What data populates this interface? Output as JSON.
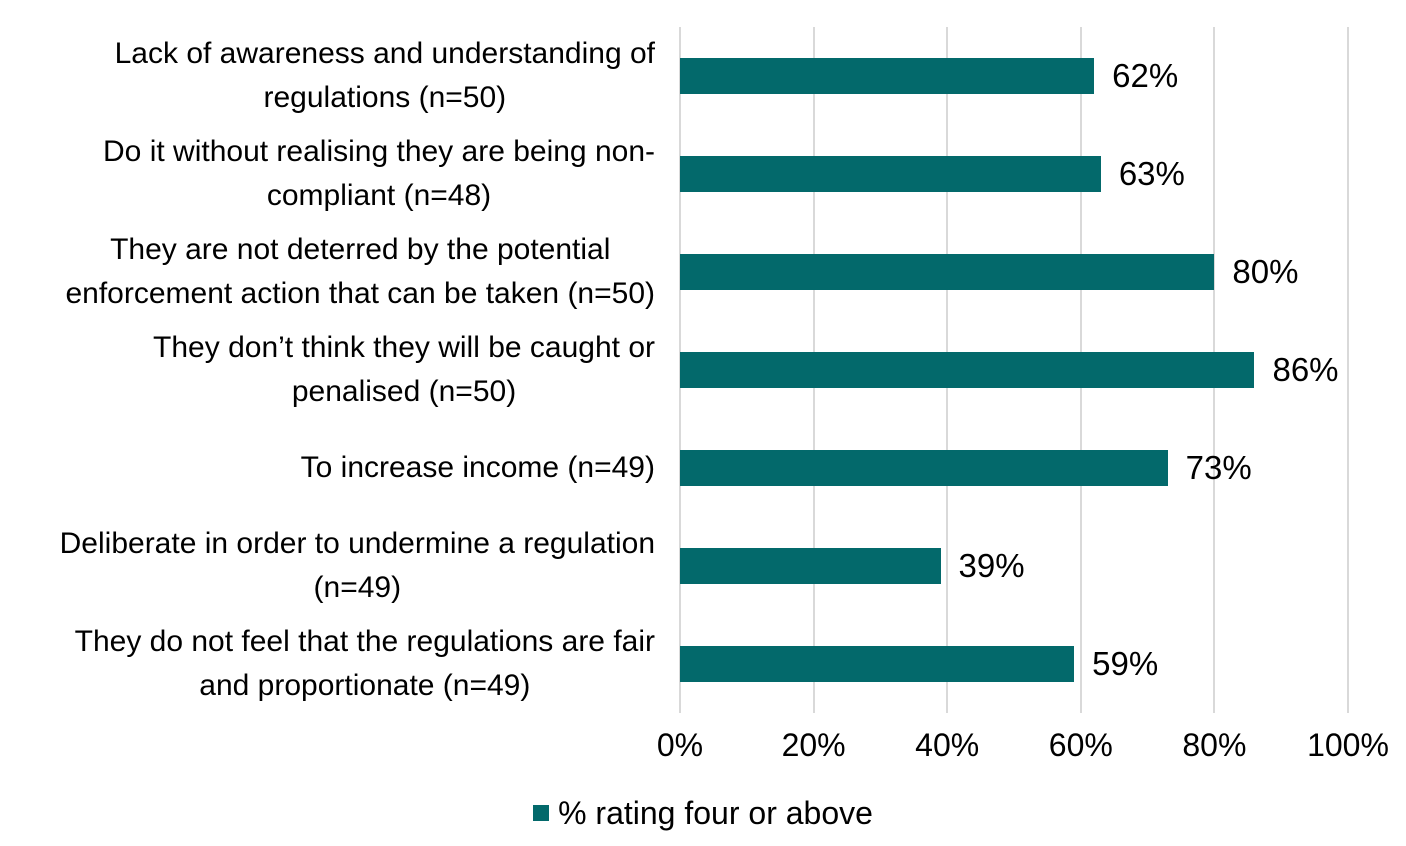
{
  "chart_data": {
    "type": "bar",
    "orientation": "horizontal",
    "title": "",
    "xlabel": "",
    "ylabel": "",
    "categories": [
      "Lack of awareness and understanding of\nregulations (n=50)",
      "Do it without realising they are being non-\ncompliant (n=48)",
      "They are not deterred by the potential\nenforcement action that can be taken (n=50)",
      "They don’t think they will be caught or\npenalised (n=50)",
      "To increase income (n=49)",
      "Deliberate in order to undermine a regulation\n(n=49)",
      "They do not feel that the regulations are fair\nand proportionate (n=49)"
    ],
    "values": [
      62,
      63,
      80,
      86,
      73,
      39,
      59
    ],
    "value_labels": [
      "62%",
      "63%",
      "80%",
      "86%",
      "73%",
      "39%",
      "59%"
    ],
    "series": [
      {
        "name": "% rating four or above",
        "values": [
          62,
          63,
          80,
          86,
          73,
          39,
          59
        ]
      }
    ],
    "xlim": [
      0,
      100
    ],
    "x_ticks": [
      "0%",
      "20%",
      "40%",
      "60%",
      "80%",
      "100%"
    ],
    "grid": true,
    "legend_position": "bottom",
    "bar_color": "#03696B",
    "gridline_color": "#D9D9D9",
    "text_color": "#000000"
  },
  "legend": {
    "label": "% rating four or above"
  }
}
